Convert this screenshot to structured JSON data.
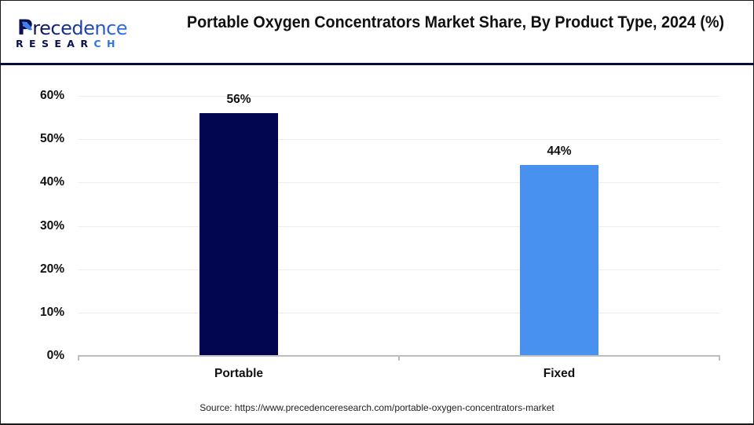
{
  "header": {
    "logo": {
      "brand_initial": "P",
      "brand_rest": "recedence",
      "sub_main": "RESEA",
      "sub_middle": "R",
      "sub_accent": "CH"
    },
    "title": "Portable Oxygen Concentrators Market Share, By Product Type, 2024 (%)"
  },
  "colors": {
    "header_rule": "#0b0b3b",
    "portable_bar": "#020550",
    "fixed_bar": "#4891ee",
    "gridline": "#ececec",
    "axis": "#bdbdbd"
  },
  "chart_data": {
    "type": "bar",
    "title": "Portable Oxygen Concentrators Market Share, By Product Type, 2024 (%)",
    "categories": [
      "Portable",
      "Fixed"
    ],
    "values": [
      56,
      44
    ],
    "value_labels": [
      "56%",
      "44%"
    ],
    "bar_colors": [
      "#020550",
      "#4891ee"
    ],
    "xlabel": "",
    "ylabel": "",
    "ylim": [
      0,
      60
    ],
    "yticks": [
      "0%",
      "10%",
      "20%",
      "30%",
      "40%",
      "50%",
      "60%"
    ],
    "grid": true,
    "legend": "none"
  },
  "footer": {
    "source": "Source: https://www.precedenceresearch.com/portable-oxygen-concentrators-market"
  }
}
